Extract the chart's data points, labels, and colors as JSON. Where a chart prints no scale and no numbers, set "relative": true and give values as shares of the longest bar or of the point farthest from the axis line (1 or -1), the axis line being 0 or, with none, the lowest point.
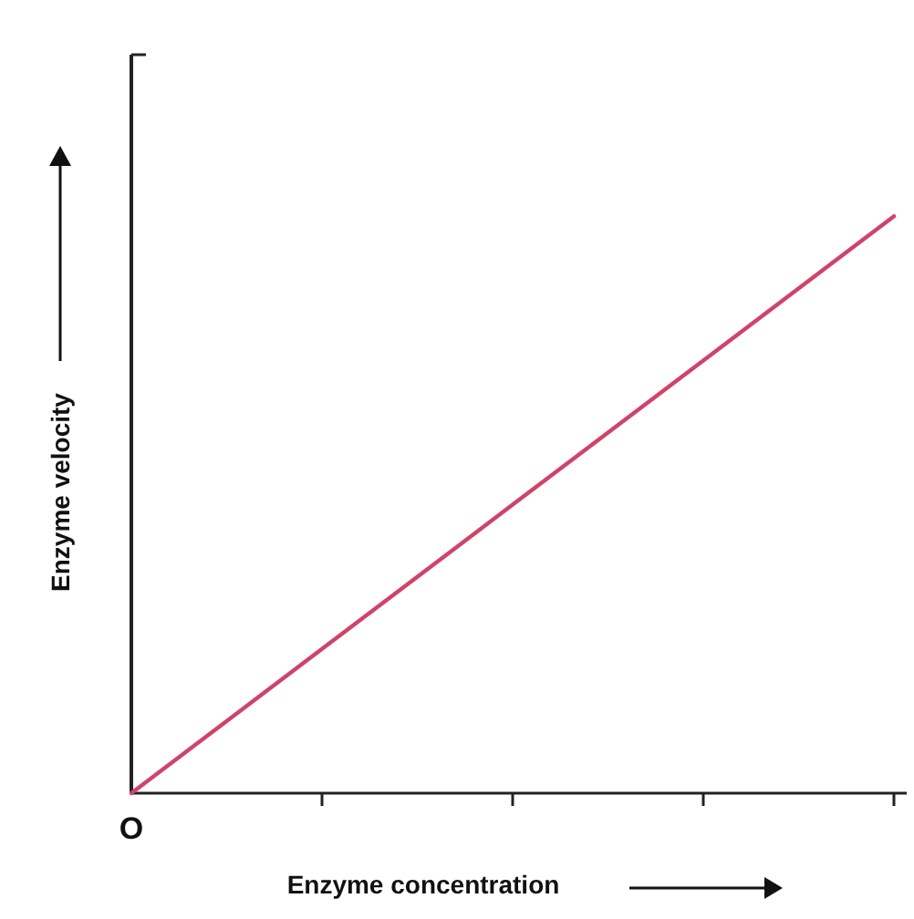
{
  "chart_data": {
    "type": "line",
    "relative": true,
    "xlabel": "Enzyme concentration",
    "ylabel": "Enzyme velocity",
    "categories": [
      null,
      null,
      null,
      null,
      null
    ],
    "values": [
      0,
      0.25,
      0.5,
      0.75,
      1
    ],
    "color": "#d0436a",
    "annotations": [
      "O"
    ],
    "marker": "none",
    "line_style": "solid"
  }
}
